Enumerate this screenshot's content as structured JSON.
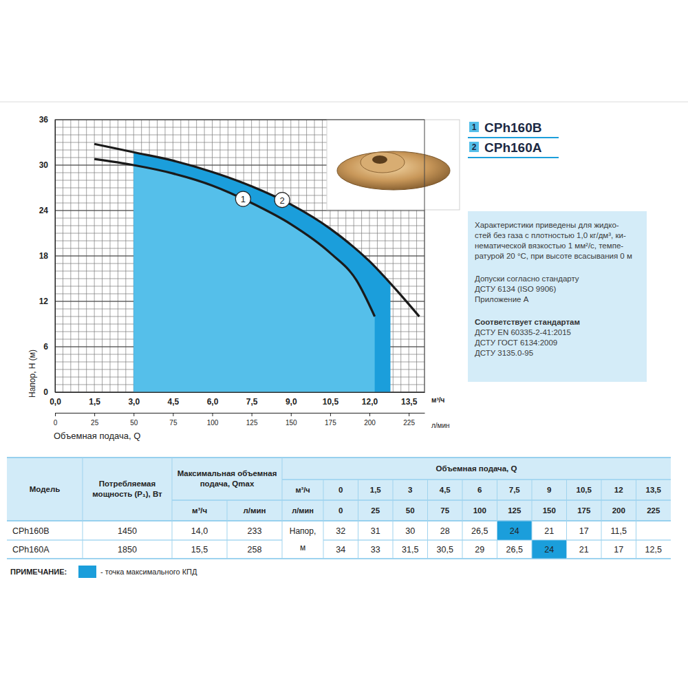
{
  "chart_data": {
    "type": "line",
    "xlim": [
      0,
      14.1
    ],
    "xticks": [
      {
        "value": 0,
        "label": "0,0"
      },
      {
        "value": 1.5,
        "label": "1,5"
      },
      {
        "value": 3,
        "label": "3,0"
      },
      {
        "value": 4.5,
        "label": "4,5"
      },
      {
        "value": 6,
        "label": "6,0"
      },
      {
        "value": 7.5,
        "label": "7,5"
      },
      {
        "value": 9,
        "label": "9,0"
      },
      {
        "value": 10.5,
        "label": "10,5"
      },
      {
        "value": 12,
        "label": "12,0"
      },
      {
        "value": 13.5,
        "label": "13,5"
      }
    ],
    "x_unit": "м³/ч",
    "x2lim": [
      0,
      235
    ],
    "x2ticks": [
      0,
      25,
      50,
      75,
      100,
      125,
      150,
      175,
      200,
      225
    ],
    "x2_unit": "л/мин",
    "x_label": "Объемная подача, Q",
    "ylim": [
      0,
      36
    ],
    "yticks": [
      0,
      6,
      12,
      18,
      24,
      30,
      36
    ],
    "y_label": "Напор, Н (м)",
    "grid": true,
    "xminor": [
      0,
      0.3,
      0.6,
      0.9,
      1.2,
      1.5,
      1.8,
      2.1,
      2.4,
      2.7,
      3,
      3.3,
      3.6,
      3.9,
      4.2,
      4.5,
      4.8,
      5.1,
      5.4,
      5.7,
      6,
      6.3,
      6.6,
      6.9,
      7.2,
      7.5,
      7.8,
      8.1,
      8.4,
      8.7,
      9,
      9.3,
      9.6,
      9.9,
      10.2,
      10.5,
      10.8,
      11.1,
      11.4,
      11.7,
      12,
      12.3,
      12.6,
      12.9,
      13.2,
      13.5,
      13.8,
      14.1
    ],
    "yminor": [
      0,
      1,
      2,
      3,
      4,
      5,
      6,
      7,
      8,
      9,
      10,
      11,
      12,
      13,
      14,
      15,
      16,
      17,
      18,
      19,
      20,
      21,
      22,
      23,
      24,
      25,
      26,
      27,
      28,
      29,
      30,
      31,
      32,
      33,
      34,
      35,
      36
    ],
    "shaded_x": [
      3.0,
      12.8
    ],
    "legend": "right",
    "series": [
      {
        "name": "CPh160B",
        "label": "1",
        "color": "#1a1a1a",
        "x": [
          1.5,
          3,
          4.5,
          6,
          7.5,
          9,
          10.5,
          11.5,
          12.2
        ],
        "values": [
          30.8,
          30.0,
          28.9,
          27.3,
          25.0,
          22.2,
          18.4,
          14.8,
          10.0
        ]
      },
      {
        "name": "CPh160A",
        "label": "2",
        "color": "#1a1a1a",
        "x": [
          1.5,
          3,
          4.5,
          6,
          7.5,
          9,
          10.5,
          12,
          13,
          13.9
        ],
        "values": [
          32.8,
          31.7,
          30.6,
          29.1,
          27.2,
          24.8,
          21.6,
          17.3,
          13.6,
          10.0
        ]
      }
    ]
  },
  "info_box": {
    "blocks": [
      {
        "lines": [
          "Характеристики приведены для жидко-",
          "стей без газа с плотностью 1,0 кг/дм³, ки-",
          "нематической вязкостью 1 мм²/с, темпе-",
          "ратурой 20 °С, при высоте всасывания 0 м"
        ]
      },
      {
        "lines": [
          "Допуски согласно стандарту",
          "ДСТУ 6134 (ISO 9906)",
          "Приложение А"
        ]
      },
      {
        "title": "Соответствует стандартам",
        "lines": [
          "ДСТУ EN 60335-2-41:2015",
          "ДСТУ ГОСТ 6134:2009",
          "ДСТУ 3135.0-95"
        ]
      }
    ]
  },
  "table": {
    "model_header": "Модель",
    "power_header": [
      "Потребляемая",
      "мощность (P₁), Вт"
    ],
    "qmax_header": [
      "Максимальная объемная",
      "подача, Qmax"
    ],
    "qmax_units": [
      "м³/ч",
      "л/мин"
    ],
    "flow_header": "Объемная подача, Q",
    "flow_units": [
      "м³/ч",
      "л/мин"
    ],
    "flow_m3h": [
      "0",
      "1,5",
      "3",
      "4,5",
      "6",
      "7,5",
      "9",
      "10,5",
      "12",
      "13,5"
    ],
    "flow_lmin": [
      "0",
      "25",
      "50",
      "75",
      "100",
      "125",
      "150",
      "175",
      "200",
      "225"
    ],
    "head_label": [
      "Напор,",
      "м"
    ],
    "rows": [
      {
        "model": "CPh160B",
        "power": "1450",
        "qmax_m3h": "14,0",
        "qmax_lmin": "233",
        "head": [
          "32",
          "31",
          "30",
          "28",
          "26,5",
          "24",
          "21",
          "17",
          "11,5",
          null
        ],
        "best": 5
      },
      {
        "model": "CPh160A",
        "power": "1850",
        "qmax_m3h": "15,5",
        "qmax_lmin": "258",
        "head": [
          "34",
          "33",
          "31,5",
          "30,5",
          "29",
          "26,5",
          "24",
          "21",
          "17",
          "12,5"
        ],
        "best": 6
      }
    ]
  },
  "note": {
    "label": "ПРИМЕЧАНИЕ:",
    "text": "- точка максимального КПД"
  }
}
